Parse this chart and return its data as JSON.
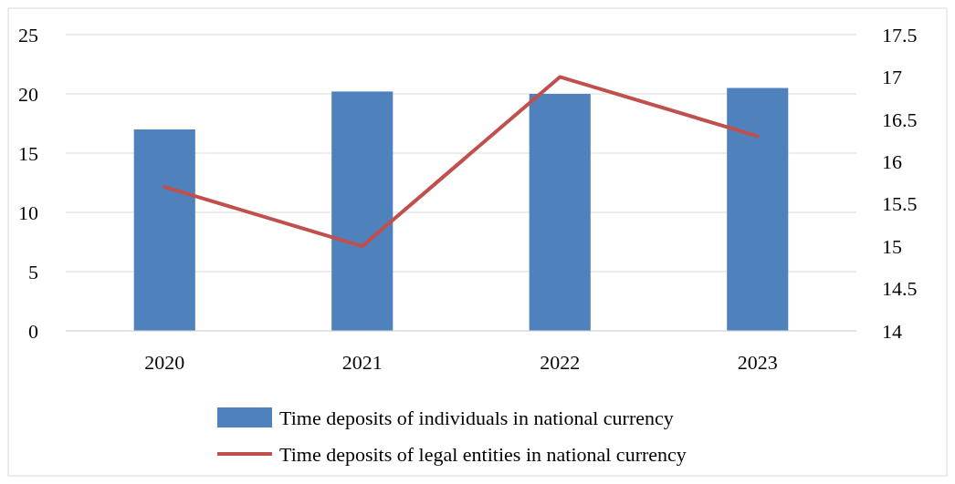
{
  "chart_data": {
    "type": "bar",
    "categories": [
      "2020",
      "2021",
      "2022",
      "2023"
    ],
    "series": [
      {
        "name": "Time deposits of individuals in national currency",
        "color": "#4f81bd",
        "values": [
          17,
          20.2,
          20,
          20.5
        ]
      },
      {
        "name": "Time deposits of legal entities in national currency",
        "color": "#c0504d",
        "type": "line",
        "axis": "y2",
        "values": [
          15.7,
          15,
          17,
          16.3
        ]
      }
    ],
    "ylim": [
      0,
      25
    ],
    "yticks": [
      0,
      5,
      10,
      15,
      20,
      25
    ],
    "y2lim": [
      14,
      17.5
    ],
    "y2ticks": [
      14,
      14.5,
      15,
      15.5,
      16,
      16.5,
      17,
      17.5
    ],
    "grid": "y",
    "legend": "bottom"
  }
}
